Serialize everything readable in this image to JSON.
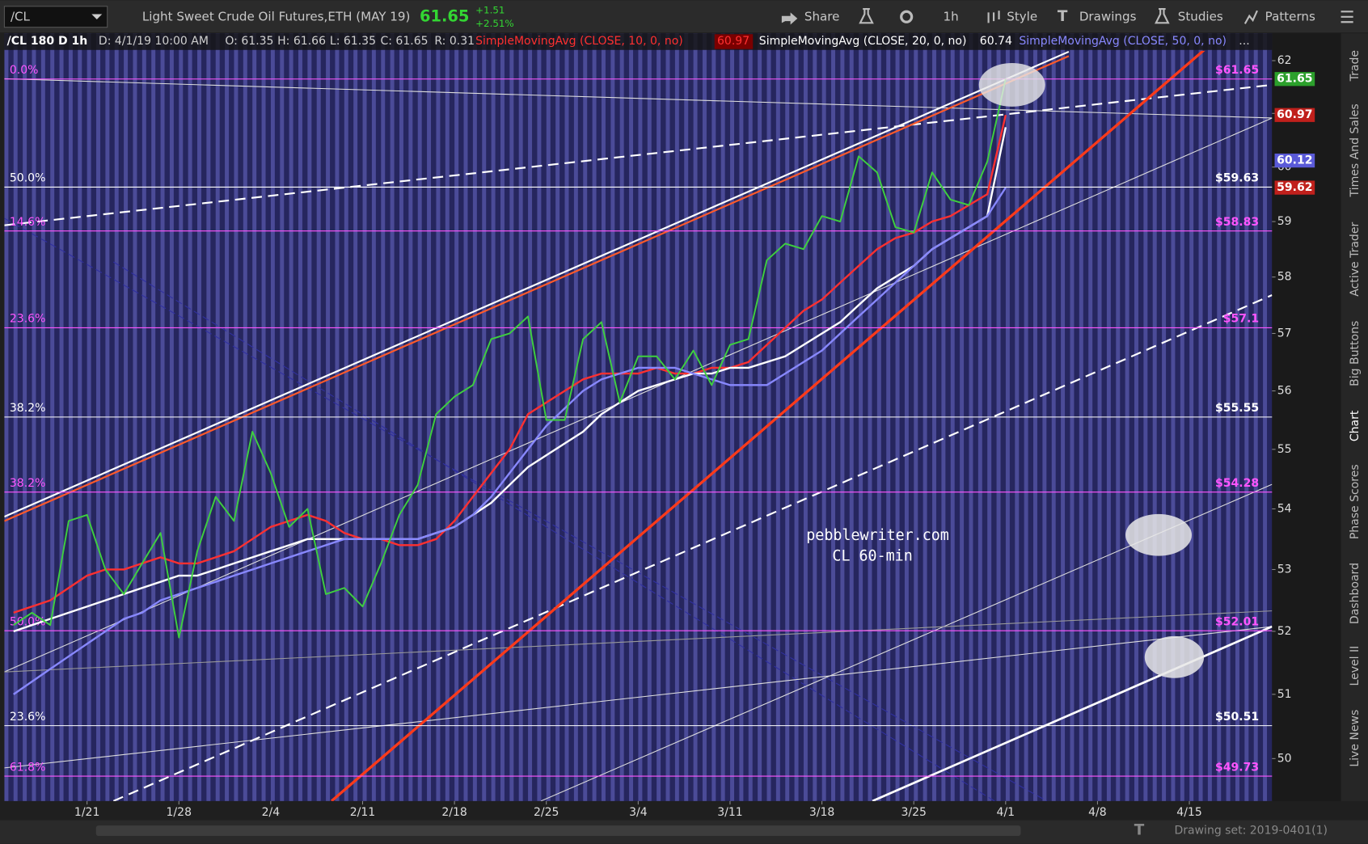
{
  "toolbar": {
    "symbol": "/CL",
    "description": "Light Sweet Crude Oil Futures,ETH (MAY 19)",
    "last": "61.65",
    "change": "+1.51",
    "change_pct": "+2.51%",
    "buttons": [
      "Share",
      "1h",
      "Style",
      "Drawings",
      "Studies",
      "Patterns"
    ]
  },
  "info_bar": {
    "symbol": "/CL 180 D 1h",
    "date": "D: 4/1/19 10:00 AM",
    "open": "O: 61.35",
    "high": "H: 61.66",
    "low": "L: 61.35",
    "close": "C: 61.65",
    "range": "R: 0.31"
  },
  "chart_data": {
    "type": "line",
    "log_scale": true,
    "categories": [
      null,
      null,
      null,
      null,
      "1/21",
      null,
      null,
      null,
      null,
      "1/28",
      null,
      null,
      null,
      null,
      "2/4",
      null,
      null,
      null,
      null,
      "2/11",
      null,
      null,
      null,
      null,
      "2/18",
      null,
      null,
      null,
      null,
      "2/25",
      null,
      null,
      null,
      null,
      "3/4",
      null,
      null,
      null,
      null,
      "3/11",
      null,
      null,
      null,
      null,
      "3/18",
      null,
      null,
      null,
      null,
      "3/25",
      null,
      null,
      null,
      null,
      "4/1",
      null,
      null,
      null,
      null,
      "4/8",
      null,
      null,
      null,
      null,
      "4/15",
      null,
      null,
      null,
      null
    ],
    "series": [
      {
        "color": "#3ecf3e",
        "values": [
          52.1,
          52.3,
          52.1,
          53.8,
          53.9,
          53.0,
          52.6,
          53.1,
          53.6,
          51.9,
          53.3,
          54.2,
          53.8,
          55.3,
          54.6,
          53.7,
          54.0,
          52.6,
          52.7,
          52.4,
          53.1,
          53.9,
          54.4,
          55.6,
          55.9,
          56.1,
          56.9,
          57.0,
          57.3,
          55.5,
          55.5,
          56.9,
          57.2,
          55.8,
          56.6,
          56.6,
          56.2,
          56.7,
          56.1,
          56.8,
          56.9,
          58.3,
          58.6,
          58.5,
          59.1,
          59.0,
          60.2,
          59.9,
          58.9,
          58.8,
          59.9,
          59.4,
          59.3,
          60.1,
          61.65,
          null,
          null,
          null,
          null,
          null,
          null,
          null,
          null,
          null,
          null,
          null,
          null,
          null,
          null
        ]
      },
      {
        "name": "SimpleMovingAvg (CLOSE, 10, 0, no)",
        "color": "#ff3030",
        "legend_value": 60.97,
        "values": [
          52.3,
          52.4,
          52.5,
          52.7,
          52.9,
          53.0,
          53.0,
          53.1,
          53.2,
          53.1,
          53.1,
          53.2,
          53.3,
          53.5,
          53.7,
          53.8,
          53.9,
          53.8,
          53.6,
          53.5,
          53.5,
          53.4,
          53.4,
          53.5,
          53.8,
          54.2,
          54.6,
          55.0,
          55.6,
          55.8,
          56.0,
          56.2,
          56.3,
          56.3,
          56.3,
          56.4,
          56.3,
          56.3,
          56.4,
          56.4,
          56.5,
          56.8,
          57.1,
          57.4,
          57.6,
          57.9,
          58.2,
          58.5,
          58.7,
          58.8,
          59.0,
          59.1,
          59.3,
          59.5,
          60.97,
          null,
          null,
          null,
          null,
          null,
          null,
          null,
          null,
          null,
          null,
          null,
          null,
          null,
          null
        ]
      },
      {
        "name": "SimpleMovingAvg (CLOSE, 20, 0, no)",
        "color": "#ffffff",
        "legend_value": 60.74,
        "values": [
          52.0,
          52.1,
          52.2,
          52.3,
          52.4,
          52.5,
          52.6,
          52.7,
          52.8,
          52.9,
          52.9,
          53.0,
          53.1,
          53.2,
          53.3,
          53.4,
          53.5,
          53.5,
          53.5,
          53.5,
          53.5,
          53.5,
          53.5,
          53.6,
          53.7,
          53.9,
          54.1,
          54.4,
          54.7,
          54.9,
          55.1,
          55.3,
          55.6,
          55.8,
          56.0,
          56.1,
          56.2,
          56.3,
          56.3,
          56.4,
          56.4,
          56.5,
          56.6,
          56.8,
          57.0,
          57.2,
          57.5,
          57.8,
          58.0,
          58.2,
          58.5,
          58.7,
          58.9,
          59.1,
          60.74,
          null,
          null,
          null,
          null,
          null,
          null,
          null,
          null,
          null,
          null,
          null,
          null,
          null,
          null
        ]
      },
      {
        "name": "SimpleMovingAvg (CLOSE, 50, 0, no)",
        "color": "#8888ff",
        "values": [
          51.0,
          51.2,
          51.4,
          51.6,
          51.8,
          52.0,
          52.2,
          52.3,
          52.5,
          52.6,
          52.7,
          52.8,
          52.9,
          53.0,
          53.1,
          53.2,
          53.3,
          53.4,
          53.5,
          53.5,
          53.5,
          53.5,
          53.5,
          53.6,
          53.7,
          53.9,
          54.2,
          54.6,
          55.0,
          55.4,
          55.7,
          56.0,
          56.2,
          56.3,
          56.4,
          56.4,
          56.4,
          56.3,
          56.2,
          56.1,
          56.1,
          56.1,
          56.3,
          56.5,
          56.7,
          57.0,
          57.3,
          57.6,
          57.9,
          58.2,
          58.5,
          58.7,
          58.9,
          59.1,
          59.62,
          null,
          null,
          null,
          null,
          null,
          null,
          null,
          null,
          null,
          null,
          null,
          null,
          null,
          null
        ]
      }
    ],
    "ylim": [
      49.35,
      62.49
    ],
    "yticks": [
      50,
      51,
      52,
      53,
      54,
      55,
      56,
      57,
      58,
      59,
      60,
      61,
      62
    ],
    "levels": [
      {
        "label": "0.0%",
        "value": 61.65,
        "price_label": "$61.65",
        "color": "#ff55ff"
      },
      {
        "label": "50.0%",
        "value": 59.63,
        "price_label": "$59.63",
        "color": "#ffffff"
      },
      {
        "label": "14.6%",
        "value": 58.83,
        "price_label": "$58.83",
        "color": "#ff55ff"
      },
      {
        "label": "23.6%",
        "value": 57.1,
        "price_label": "$57.1",
        "color": "#ff55ff"
      },
      {
        "label": "38.2%",
        "value": 55.55,
        "price_label": "$55.55",
        "color": "#ffffff"
      },
      {
        "label": "38.2%",
        "value": 54.28,
        "price_label": "$54.28",
        "color": "#ff55ff"
      },
      {
        "label": "50.0%",
        "value": 52.01,
        "price_label": "$52.01",
        "color": "#ff55ff"
      },
      {
        "label": "23.6%",
        "value": 50.51,
        "price_label": "$50.51",
        "color": "#ffffff"
      },
      {
        "label": "61.8%",
        "value": 49.73,
        "price_label": "$49.73",
        "color": "#ff55ff"
      }
    ],
    "badges": [
      {
        "value": 61.65,
        "color": "#2ca02c"
      },
      {
        "value": 60.97,
        "color": "#c0201c"
      },
      {
        "value": 60.12,
        "color": "#5a5ad8"
      },
      {
        "value": 59.62,
        "color": "#c0201c"
      }
    ],
    "annotations": [
      "pebblewriter.com",
      "CL 60-min"
    ]
  },
  "side_tabs": [
    "Trade",
    "Times And Sales",
    "Active Trader",
    "Big Buttons",
    "Chart",
    "Phase Scores",
    "Dashboard",
    "Level II",
    "Live News"
  ],
  "footer": {
    "drawing_set": "Drawing set: 2019-0401(1)"
  }
}
